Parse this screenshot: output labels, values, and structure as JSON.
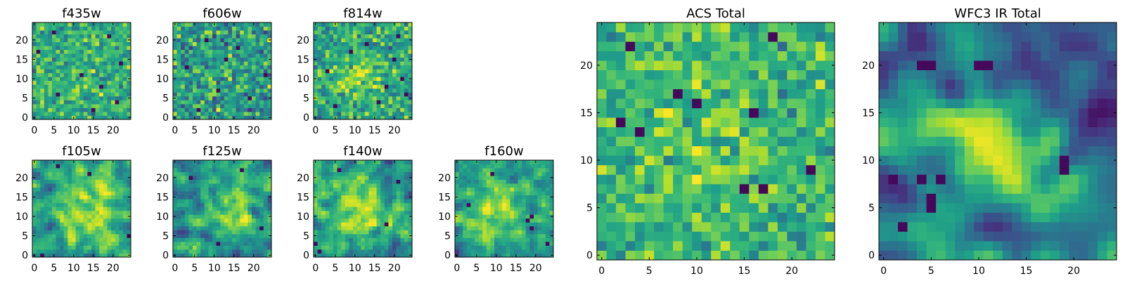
{
  "figure": {
    "colormap": "viridis",
    "colormap_stops": [
      "#440154",
      "#3b528b",
      "#21918c",
      "#5ec962",
      "#fde725"
    ]
  },
  "chart_data": [
    {
      "type": "heatmap",
      "title": "f435w",
      "grid_size": 25,
      "xticks": [
        0,
        5,
        10,
        15,
        20
      ],
      "yticks": [
        0,
        5,
        10,
        15,
        20
      ],
      "xlim": [
        0,
        24
      ],
      "ylim": [
        0,
        24
      ],
      "seed": 11,
      "mean": 0.62,
      "noise": 0.13,
      "smooth": 0,
      "blob": {
        "cx": 12,
        "cy": 12,
        "sigma": 5,
        "amp": 0.04
      },
      "dark_pixels": [
        [
          5,
          22
        ],
        [
          19,
          21
        ],
        [
          1,
          17
        ],
        [
          22,
          14
        ],
        [
          12,
          11
        ],
        [
          17,
          8
        ],
        [
          6,
          6
        ],
        [
          21,
          4
        ],
        [
          15,
          2
        ]
      ]
    },
    {
      "type": "heatmap",
      "title": "f606w",
      "grid_size": 25,
      "xticks": [
        0,
        5,
        10,
        15,
        20
      ],
      "yticks": [
        0,
        5,
        10,
        15,
        20
      ],
      "xlim": [
        0,
        24
      ],
      "ylim": [
        0,
        24
      ],
      "seed": 23,
      "mean": 0.55,
      "noise": 0.16,
      "smooth": 0,
      "blob": {
        "cx": 12,
        "cy": 12,
        "sigma": 5,
        "amp": 0.03
      },
      "dark_pixels": [
        [
          8,
          20
        ],
        [
          16,
          18
        ],
        [
          3,
          13
        ],
        [
          23,
          11
        ],
        [
          11,
          7
        ],
        [
          19,
          5
        ],
        [
          6,
          2
        ],
        [
          13,
          15
        ]
      ]
    },
    {
      "type": "heatmap",
      "title": "f814w",
      "grid_size": 25,
      "xticks": [
        0,
        5,
        10,
        15,
        20
      ],
      "yticks": [
        0,
        5,
        10,
        15,
        20
      ],
      "xlim": [
        0,
        24
      ],
      "ylim": [
        0,
        24
      ],
      "seed": 37,
      "mean": 0.6,
      "noise": 0.14,
      "smooth": 0,
      "blob": {
        "cx": 11,
        "cy": 11,
        "sigma": 4,
        "amp": 0.22
      },
      "dark_pixels": [
        [
          21,
          21
        ],
        [
          9,
          17
        ],
        [
          20,
          15
        ],
        [
          3,
          12
        ],
        [
          18,
          8
        ],
        [
          23,
          6
        ],
        [
          16,
          4
        ],
        [
          5,
          3
        ],
        [
          13,
          19
        ],
        [
          22,
          10
        ]
      ]
    },
    {
      "type": "heatmap",
      "title": "ACS Total",
      "grid_size": 25,
      "xticks": [
        0,
        5,
        10,
        15,
        20
      ],
      "yticks": [
        0,
        5,
        10,
        15,
        20
      ],
      "xlim": [
        0,
        24
      ],
      "ylim": [
        0,
        24
      ],
      "seed": 41,
      "mean": 0.66,
      "noise": 0.12,
      "smooth": 0,
      "blob": {
        "cx": 11,
        "cy": 11,
        "sigma": 4,
        "amp": 0.1
      },
      "dark_pixels": [
        [
          18,
          23
        ],
        [
          3,
          22
        ],
        [
          10,
          16
        ],
        [
          16,
          15
        ],
        [
          2,
          14
        ],
        [
          4,
          13
        ],
        [
          15,
          7
        ],
        [
          17,
          7
        ],
        [
          8,
          17
        ],
        [
          22,
          9
        ]
      ]
    },
    {
      "type": "heatmap",
      "title": "f105w",
      "grid_size": 25,
      "xticks": [
        0,
        5,
        10,
        15,
        20
      ],
      "yticks": [
        0,
        5,
        10,
        15,
        20
      ],
      "xlim": [
        0,
        24
      ],
      "ylim": [
        0,
        24
      ],
      "seed": 53,
      "mean": 0.55,
      "noise": 0.14,
      "smooth": 1,
      "blob": {
        "cx": 13,
        "cy": 11,
        "sigma": 5,
        "amp": 0.3
      },
      "dark_pixels": [
        [
          6,
          23
        ],
        [
          24,
          5
        ],
        [
          2,
          0
        ],
        [
          14,
          21
        ]
      ]
    },
    {
      "type": "heatmap",
      "title": "f125w",
      "grid_size": 25,
      "xticks": [
        0,
        5,
        10,
        15,
        20
      ],
      "yticks": [
        0,
        5,
        10,
        15,
        20
      ],
      "xlim": [
        0,
        24
      ],
      "ylim": [
        0,
        24
      ],
      "seed": 67,
      "mean": 0.52,
      "noise": 0.15,
      "smooth": 1,
      "blob": {
        "cx": 14,
        "cy": 13,
        "sigma": 5,
        "amp": 0.3
      },
      "dark_pixels": [
        [
          4,
          20
        ],
        [
          17,
          22
        ],
        [
          11,
          3
        ],
        [
          22,
          7
        ]
      ]
    },
    {
      "type": "heatmap",
      "title": "f140w",
      "grid_size": 25,
      "xticks": [
        0,
        5,
        10,
        15,
        20
      ],
      "yticks": [
        0,
        5,
        10,
        15,
        20
      ],
      "xlim": [
        0,
        24
      ],
      "ylim": [
        0,
        24
      ],
      "seed": 79,
      "mean": 0.52,
      "noise": 0.15,
      "smooth": 1,
      "blob": {
        "cx": 11,
        "cy": 11,
        "sigma": 5,
        "amp": 0.3
      },
      "dark_pixels": [
        [
          1,
          1
        ],
        [
          0,
          3
        ],
        [
          21,
          19
        ],
        [
          18,
          8
        ],
        [
          6,
          22
        ]
      ]
    },
    {
      "type": "heatmap",
      "title": "f160w",
      "grid_size": 25,
      "xticks": [
        0,
        5,
        10,
        15,
        20
      ],
      "yticks": [
        0,
        5,
        10,
        15,
        20
      ],
      "xlim": [
        0,
        24
      ],
      "ylim": [
        0,
        24
      ],
      "seed": 91,
      "mean": 0.5,
      "noise": 0.16,
      "smooth": 1,
      "blob": {
        "cx": 10,
        "cy": 11,
        "sigma": 5,
        "amp": 0.32
      },
      "dark_pixels": [
        [
          18,
          9
        ],
        [
          19,
          10
        ],
        [
          19,
          7
        ],
        [
          23,
          3
        ],
        [
          3,
          13
        ],
        [
          9,
          21
        ]
      ]
    },
    {
      "type": "heatmap",
      "title": "WFC3 IR Total",
      "grid_size": 25,
      "xticks": [
        0,
        5,
        10,
        15,
        20
      ],
      "yticks": [
        0,
        5,
        10,
        15,
        20
      ],
      "xlim": [
        0,
        24
      ],
      "ylim": [
        0,
        24
      ],
      "seed": 103,
      "mean": 0.4,
      "noise": 0.08,
      "smooth": 2,
      "blob": {
        "cx": 11,
        "cy": 12,
        "sigma": 3.5,
        "amp": 0.6
      },
      "dark_pixels": [
        [
          4,
          20
        ],
        [
          5,
          20
        ],
        [
          10,
          20
        ],
        [
          11,
          20
        ],
        [
          1,
          8
        ],
        [
          4,
          8
        ],
        [
          6,
          8
        ],
        [
          5,
          6
        ],
        [
          5,
          5
        ],
        [
          19,
          10
        ],
        [
          19,
          9
        ],
        [
          2,
          3
        ]
      ]
    }
  ]
}
